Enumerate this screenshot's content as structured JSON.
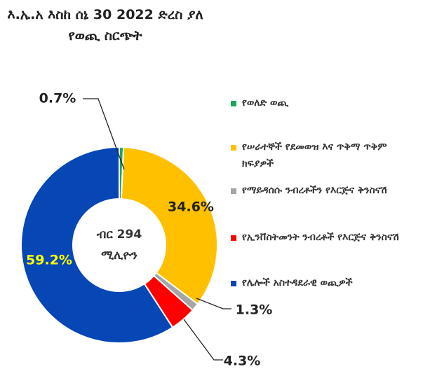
{
  "chart_data": {
    "type": "donut",
    "title": "እ.ኤ.አ እስከ ሰኔ 30 2022 ድረስ ያለ የወጪ ስርጭት",
    "center_label": [
      "ብር 294",
      "ሚሊዮን"
    ],
    "categories": [
      "የወለድ ወጪ",
      "የሠራተኞች የደመወዝ እና ጥቅማ ጥቅም ክፍያዎች",
      "የማይዳሰሱ ንብረቶችን የእርጅና ቅንስናሽ",
      "የኢንቨስትመንት ንብረቶች የእርጅና ቅንስናሽ",
      "የሌሎች አስተዳደራዊ ወጪዎች"
    ],
    "values": [
      0.7,
      34.6,
      1.3,
      4.3,
      59.2
    ],
    "value_labels": [
      "0.7%",
      "34.6%",
      "1.3%",
      "4.3%",
      "59.2%"
    ],
    "colors": [
      "#1aa85a",
      "#ffc000",
      "#a5a5a5",
      "#ff0000",
      "#0747b5"
    ],
    "legend": "right"
  }
}
